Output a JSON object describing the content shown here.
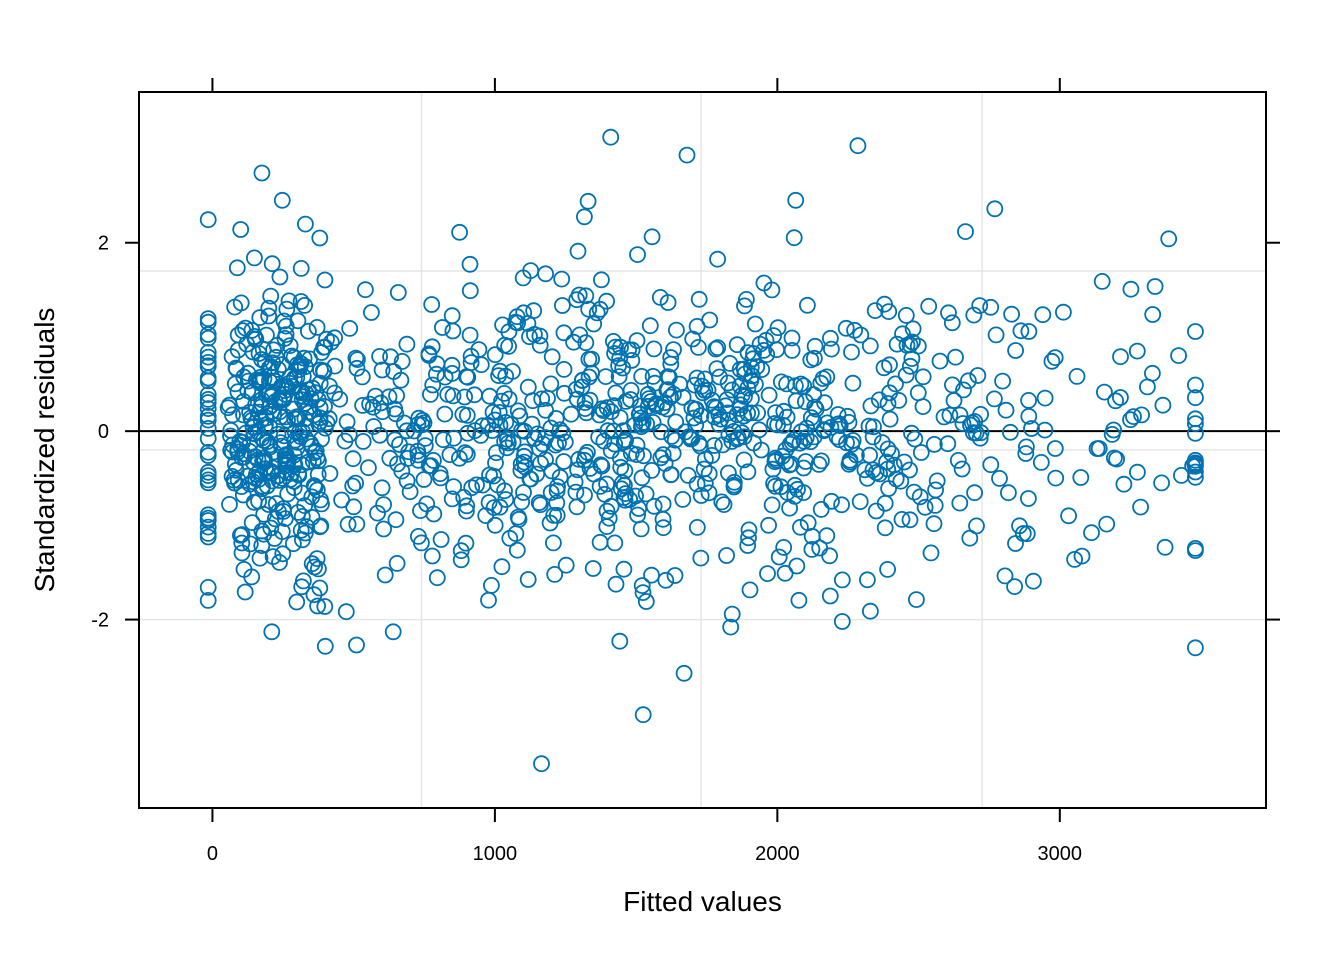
{
  "chart_data": {
    "type": "scatter",
    "title": "",
    "xlabel": "Fitted values",
    "ylabel": "Standardized residuals",
    "xlim": [
      -260,
      3730
    ],
    "ylim": [
      -4.0,
      3.6
    ],
    "x_ticks": [
      0,
      1000,
      2000,
      3000
    ],
    "x_tick_labels": [
      "0",
      "1000",
      "2000",
      "3000"
    ],
    "y_ticks": [
      -2,
      0,
      2
    ],
    "y_tick_labels": [
      "-2",
      "0",
      "2"
    ],
    "grid": true,
    "grid_x": [
      740,
      1730,
      2725
    ],
    "grid_y": [
      -2.0,
      -0.2,
      1.7
    ],
    "reference_line_y": 0,
    "marker": "open-circle",
    "colors": {
      "points": "#0072b2",
      "grid": "#e6e6e6",
      "axis": "#000000"
    },
    "notable_points": [
      {
        "x": 1410,
        "y": 3.12
      },
      {
        "x": 2285,
        "y": 3.03
      },
      {
        "x": 1680,
        "y": 2.93
      },
      {
        "x": 175,
        "y": 2.74
      },
      {
        "x": 1165,
        "y": -3.53
      },
      {
        "x": 1525,
        "y": -3.01
      },
      {
        "x": 1670,
        "y": -2.57
      },
      {
        "x": 510,
        "y": -2.27
      },
      {
        "x": 3470,
        "y": -0.37
      },
      {
        "x": 3310,
        "y": 0.47
      },
      {
        "x": 3215,
        "y": 0.79
      },
      {
        "x": 3150,
        "y": 1.59
      },
      {
        "x": 2770,
        "y": 2.36
      },
      {
        "x": 2065,
        "y": 2.45
      },
      {
        "x": 1330,
        "y": 2.44
      },
      {
        "x": 380,
        "y": 2.05
      },
      {
        "x": 100,
        "y": 2.14
      },
      {
        "x": 210,
        "y": -2.13
      },
      {
        "x": 640,
        "y": -2.13
      },
      {
        "x": 1835,
        "y": -2.08
      },
      {
        "x": 2230,
        "y": -2.02
      },
      {
        "x": 2840,
        "y": -1.65
      }
    ],
    "sampled_points": {
      "count": 1200,
      "seed": 20240607,
      "x_mean": 1500,
      "x_sd": 870,
      "x_min": -15,
      "x_max": 3480,
      "y_mean": 0,
      "y_sd": 0.78,
      "y_min": -2.3,
      "y_max": 2.45
    }
  }
}
